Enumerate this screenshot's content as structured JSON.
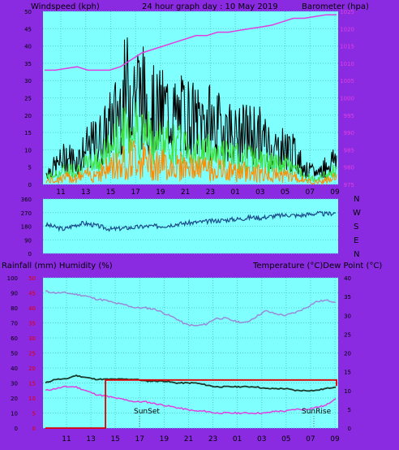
{
  "header": {
    "left_label": "Windspeed (kph)",
    "title": "24 hour graph day : 10 May 2019",
    "right_label": "Barometer (hpa)"
  },
  "compass": [
    "N",
    "W",
    "S",
    "E",
    "N"
  ],
  "lower_header": {
    "left_label": "Rainfall (mm)  Humidity (%)",
    "right_label": "Temperature (°C)Dew Point (°C)"
  },
  "markers": {
    "sunset": "SunSet",
    "sunrise": "SunRise"
  },
  "colors": {
    "plot_bg": "#80ffff",
    "frame_bg": "#8a2be2",
    "wind_gust": "#000000",
    "wind_avg": "#40e040",
    "wind_low": "#ff8c00",
    "barometer": "#e040e0",
    "direction": "#1a4a8a",
    "humidity": "#9a8ad8",
    "temperature": "#1a3a2a",
    "dewpoint": "#e040e0",
    "rainfall": "#e00000"
  },
  "chart_data": [
    {
      "type": "line",
      "name": "wind-barometer",
      "x_ticks": [
        "11",
        "13",
        "15",
        "17",
        "19",
        "21",
        "23",
        "01",
        "03",
        "05",
        "07",
        "09"
      ],
      "y_left_ticks": [
        "0",
        "5",
        "10",
        "15",
        "20",
        "25",
        "30",
        "35",
        "40",
        "45",
        "50"
      ],
      "ylim_left": [
        0,
        50
      ],
      "y_right_ticks": [
        "975",
        "980",
        "985",
        "990",
        "995",
        "1000",
        "1005",
        "1010",
        "1015",
        "1020",
        "1025"
      ],
      "ylim_right": [
        975,
        1025
      ],
      "grid": true,
      "barometer": [
        1008,
        1008,
        1008.5,
        1009,
        1008,
        1008,
        1008,
        1009,
        1011,
        1013,
        1014,
        1015,
        1016,
        1017,
        1018,
        1018,
        1019,
        1019,
        1019.5,
        1020,
        1020.5,
        1021,
        1022,
        1023,
        1023,
        1023.5,
        1024,
        1024
      ],
      "gust_envelope": [
        5,
        8,
        12,
        10,
        15,
        18,
        22,
        30,
        40,
        42,
        35,
        30,
        32,
        28,
        30,
        26,
        28,
        24,
        25,
        20,
        22,
        22,
        18,
        15,
        16,
        12,
        6,
        5,
        8,
        12
      ],
      "avg_envelope": [
        3,
        4,
        6,
        6,
        8,
        10,
        13,
        18,
        22,
        24,
        20,
        18,
        17,
        16,
        16,
        14,
        14,
        13,
        12,
        11,
        11,
        10,
        9,
        8,
        8,
        6,
        3,
        2,
        4,
        6
      ]
    },
    {
      "type": "line",
      "name": "wind-direction",
      "y_ticks": [
        "360",
        "270",
        "180",
        "90",
        "0"
      ],
      "ylim": [
        0,
        360
      ],
      "values": [
        190,
        175,
        160,
        185,
        200,
        190,
        175,
        160,
        165,
        170,
        175,
        180,
        180,
        185,
        195,
        200,
        205,
        210,
        215,
        220,
        225,
        230,
        240,
        235,
        245,
        250,
        255,
        250,
        258,
        265,
        260,
        270
      ]
    },
    {
      "type": "line",
      "name": "humidity-temperature",
      "x_ticks": [
        "11",
        "13",
        "15",
        "17",
        "19",
        "21",
        "23",
        "01",
        "03",
        "05",
        "07",
        "09"
      ],
      "y_left_ticks": [
        "0",
        "10",
        "20",
        "30",
        "40",
        "50",
        "60",
        "70",
        "80",
        "90",
        "100"
      ],
      "ylim_left": [
        0,
        100
      ],
      "y_rain_ticks": [
        "0",
        "5",
        "10",
        "15",
        "20",
        "25",
        "30",
        "35",
        "40",
        "45",
        "50"
      ],
      "ylim_rain": [
        0,
        50
      ],
      "y_right_ticks": [
        "0",
        "5",
        "10",
        "15",
        "20",
        "25",
        "30",
        "35",
        "40"
      ],
      "ylim_right": [
        0,
        40
      ],
      "grid": true,
      "humidity": [
        91,
        90,
        90,
        89,
        88,
        86,
        85,
        83,
        82,
        80,
        80,
        79,
        76,
        73,
        69,
        68,
        69,
        73,
        73,
        71,
        70,
        74,
        78,
        76,
        75,
        77,
        80,
        84,
        85,
        84
      ],
      "temperature": [
        12,
        13,
        13,
        14,
        13.5,
        13,
        13,
        13,
        13,
        13,
        12.5,
        12.5,
        12.5,
        12,
        12,
        12,
        11.5,
        11,
        11,
        11,
        11,
        11,
        10.5,
        10.5,
        10.5,
        10,
        10,
        10,
        10.5,
        11
      ],
      "dewpoint": [
        10,
        10.5,
        11,
        11,
        10,
        9,
        8.5,
        8,
        7.5,
        7,
        7,
        6.5,
        6,
        5.5,
        5,
        4.5,
        4.5,
        4,
        4,
        4,
        4,
        4,
        4,
        4.5,
        4.5,
        5,
        5,
        5.5,
        6,
        8
      ],
      "rainfall": [
        0,
        0,
        0,
        0,
        0,
        0,
        16,
        16,
        16,
        16,
        16,
        16,
        16,
        16,
        16,
        16,
        16,
        16,
        16,
        16,
        16,
        16,
        16,
        16,
        16,
        16,
        16,
        16,
        16,
        16
      ]
    }
  ]
}
